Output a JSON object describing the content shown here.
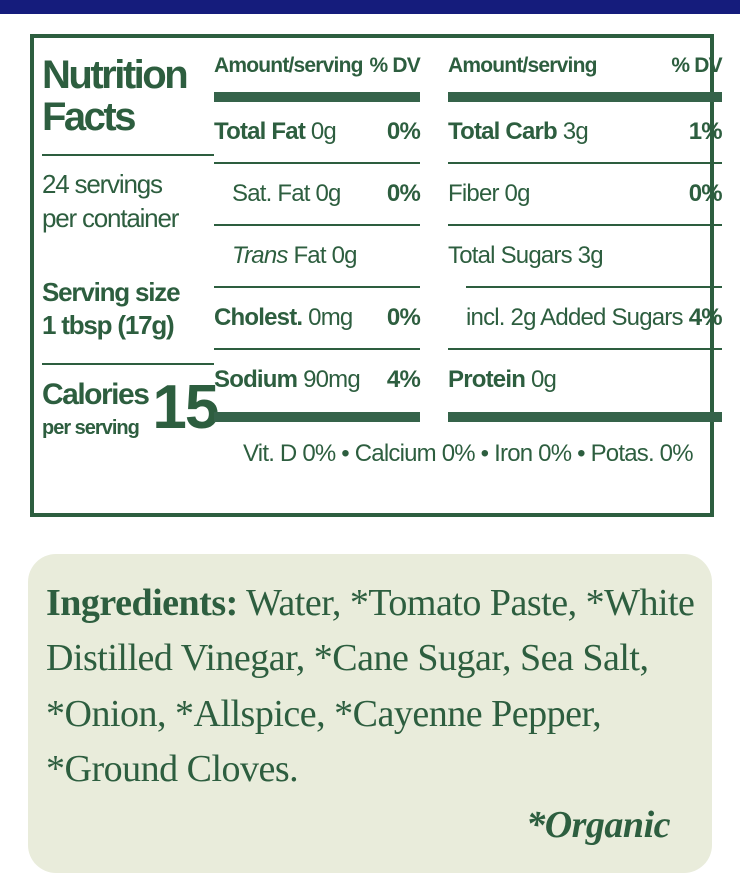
{
  "colors": {
    "green": "#2d5e3f",
    "bar_green": "#35634a",
    "navy": "#151c7c",
    "cream": "#e9ecdb"
  },
  "panel": {
    "title_line1": "Nutrition",
    "title_line2": "Facts",
    "servings_line1": "24 servings",
    "servings_line2": "per container",
    "serving_size_line1": "Serving size",
    "serving_size_line2": "1 tbsp (17g)",
    "calories_label": "Calories",
    "calories_sub": "per serving",
    "calories_value": "15",
    "columns": [
      {
        "header_amount": "Amount/serving",
        "header_dv": "% DV",
        "rows": [
          {
            "segments": [
              {
                "text": "Total Fat",
                "style": "bold"
              },
              {
                "text": " 0g",
                "style": "regular"
              }
            ],
            "dv": "0%",
            "indent": false,
            "rule_after_indent": false
          },
          {
            "segments": [
              {
                "text": "Sat. Fat 0g",
                "style": "regular"
              }
            ],
            "dv": "0%",
            "indent": true,
            "rule_after_indent": false
          },
          {
            "segments": [
              {
                "text": "Trans",
                "style": "italic"
              },
              {
                "text": " Fat 0g",
                "style": "regular"
              }
            ],
            "dv": "",
            "indent": true,
            "rule_after_indent": false
          },
          {
            "segments": [
              {
                "text": "Cholest.",
                "style": "bold"
              },
              {
                "text": " 0mg",
                "style": "regular"
              }
            ],
            "dv": "0%",
            "indent": false,
            "rule_after_indent": false
          },
          {
            "segments": [
              {
                "text": "Sodium",
                "style": "bold"
              },
              {
                "text": " 90mg",
                "style": "regular"
              }
            ],
            "dv": "4%",
            "indent": false,
            "rule_after_indent": false
          }
        ]
      },
      {
        "header_amount": "Amount/serving",
        "header_dv": "% DV",
        "rows": [
          {
            "segments": [
              {
                "text": "Total Carb",
                "style": "bold"
              },
              {
                "text": "  3g",
                "style": "regular"
              }
            ],
            "dv": "1%",
            "indent": false,
            "rule_after_indent": false
          },
          {
            "segments": [
              {
                "text": "Fiber 0g",
                "style": "regular"
              }
            ],
            "dv": "0%",
            "indent": false,
            "rule_after_indent": false
          },
          {
            "segments": [
              {
                "text": "Total Sugars 3g",
                "style": "regular"
              }
            ],
            "dv": "",
            "indent": false,
            "rule_after_indent": true
          },
          {
            "segments": [
              {
                "text": "incl. 2g Added Sugars",
                "style": "regular"
              }
            ],
            "dv": "4%",
            "indent": true,
            "rule_after_indent": false
          },
          {
            "segments": [
              {
                "text": "Protein",
                "style": "bold"
              },
              {
                "text": "  0g",
                "style": "regular"
              }
            ],
            "dv": "",
            "indent": false,
            "rule_after_indent": false
          }
        ]
      }
    ],
    "footer": "Vit. D 0% • Calcium 0% • Iron 0% • Potas. 0%"
  },
  "ingredients": {
    "label": "Ingredients:",
    "text": " Water, *Tomato Paste, *White Distilled Vinegar, *Cane Sugar, Sea Salt, *Onion, *Allspice, *Cayenne Pepper, *Ground Cloves.",
    "footnote": "*Organic"
  }
}
